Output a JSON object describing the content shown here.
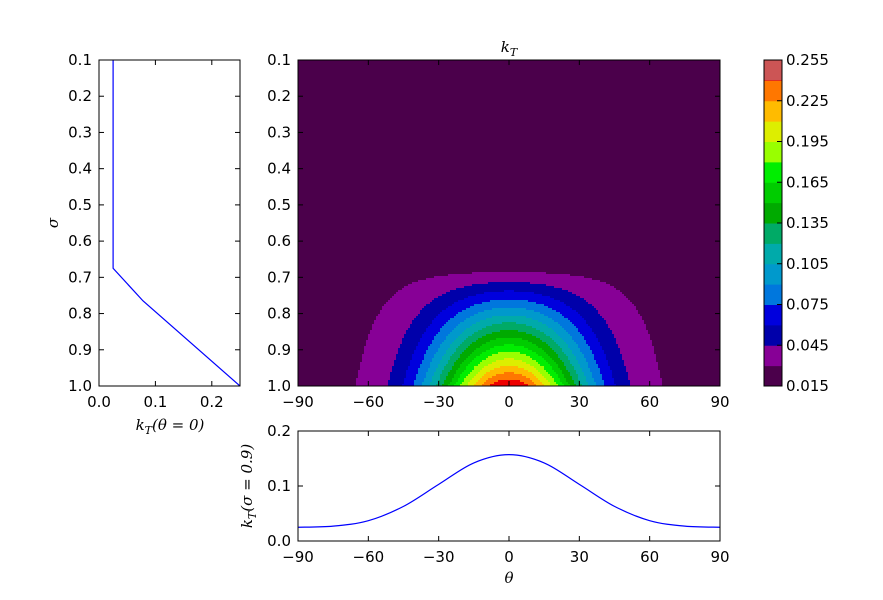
{
  "chart_data": [
    {
      "id": "contour",
      "type": "heatmap",
      "title": "k_T",
      "x_axis": {
        "ticks": [
          -90,
          -60,
          -30,
          0,
          30,
          60,
          90
        ],
        "tick_labels": [
          "−90",
          "−60",
          "−30",
          "0",
          "30",
          "60",
          "90"
        ],
        "range": [
          -90,
          90
        ]
      },
      "y_axis": {
        "ticks": [
          0.1,
          0.2,
          0.3,
          0.4,
          0.5,
          0.6,
          0.7,
          0.8,
          0.9,
          1.0
        ],
        "tick_labels": [
          "0.1",
          "0.2",
          "0.3",
          "0.4",
          "0.5",
          "0.6",
          "0.7",
          "0.8",
          "0.9",
          "1.0"
        ],
        "range": [
          0.1,
          1.0
        ],
        "inverted": true
      },
      "field": {
        "background": 0.0255,
        "sigma_threshold": 0.675,
        "peak_at_surface": 0.255,
        "theta_width_deg": 33
      },
      "colorbar": {
        "levels": [
          0.015,
          0.03,
          0.045,
          0.06,
          0.075,
          0.09,
          0.105,
          0.12,
          0.135,
          0.15,
          0.165,
          0.18,
          0.195,
          0.21,
          0.225,
          0.24,
          0.255
        ],
        "colors": [
          "#4b004b",
          "#870096",
          "#0000aa",
          "#0000dd",
          "#0077dd",
          "#0099cc",
          "#00aaaa",
          "#00aa66",
          "#00aa00",
          "#00cc00",
          "#00ee00",
          "#99ff00",
          "#ddee00",
          "#ffbb00",
          "#ff7700",
          "#ee0000",
          "#cc5555"
        ],
        "tick_values": [
          0.015,
          0.045,
          0.075,
          0.105,
          0.135,
          0.165,
          0.195,
          0.225,
          0.255
        ],
        "tick_labels": [
          "0.015",
          "0.045",
          "0.075",
          "0.105",
          "0.135",
          "0.165",
          "0.195",
          "0.225",
          "0.255"
        ]
      }
    },
    {
      "id": "profile_sigma",
      "type": "line",
      "xlabel": "k_T(θ = 0)",
      "ylabel": "σ",
      "x_axis": {
        "ticks": [
          0.0,
          0.1,
          0.2
        ],
        "tick_labels": [
          "0.0",
          "0.1",
          "0.2"
        ],
        "range": [
          0.0,
          0.25
        ]
      },
      "y_axis": {
        "ticks": [
          0.1,
          0.2,
          0.3,
          0.4,
          0.5,
          0.6,
          0.7,
          0.8,
          0.9,
          1.0
        ],
        "tick_labels": [
          "0.1",
          "0.2",
          "0.3",
          "0.4",
          "0.5",
          "0.6",
          "0.7",
          "0.8",
          "0.9",
          "1.0"
        ],
        "range": [
          0.1,
          1.0
        ],
        "inverted": true
      },
      "series": [
        {
          "color": "#0000ff",
          "points": [
            [
              0.025,
              0.1
            ],
            [
              0.025,
              0.675
            ],
            [
              0.078,
              0.765
            ],
            [
              0.25,
              1.0
            ]
          ]
        }
      ]
    },
    {
      "id": "profile_theta",
      "type": "line",
      "xlabel": "θ",
      "ylabel": "k_T(σ = 0.9)",
      "x_axis": {
        "ticks": [
          -90,
          -60,
          -30,
          0,
          30,
          60,
          90
        ],
        "tick_labels": [
          "−90",
          "−60",
          "−30",
          "0",
          "30",
          "60",
          "90"
        ],
        "range": [
          -90,
          90
        ]
      },
      "y_axis": {
        "ticks": [
          0.0,
          0.1,
          0.2
        ],
        "tick_labels": [
          "0.0",
          "0.1",
          "0.2"
        ],
        "range": [
          0.0,
          0.2
        ]
      },
      "series": [
        {
          "color": "#0000ff",
          "points": [
            [
              -90,
              0.025
            ],
            [
              -75,
              0.027
            ],
            [
              -60,
              0.037
            ],
            [
              -45,
              0.063
            ],
            [
              -30,
              0.103
            ],
            [
              -15,
              0.142
            ],
            [
              0,
              0.157
            ],
            [
              15,
              0.142
            ],
            [
              30,
              0.103
            ],
            [
              45,
              0.063
            ],
            [
              60,
              0.037
            ],
            [
              75,
              0.027
            ],
            [
              90,
              0.025
            ]
          ]
        }
      ]
    }
  ]
}
